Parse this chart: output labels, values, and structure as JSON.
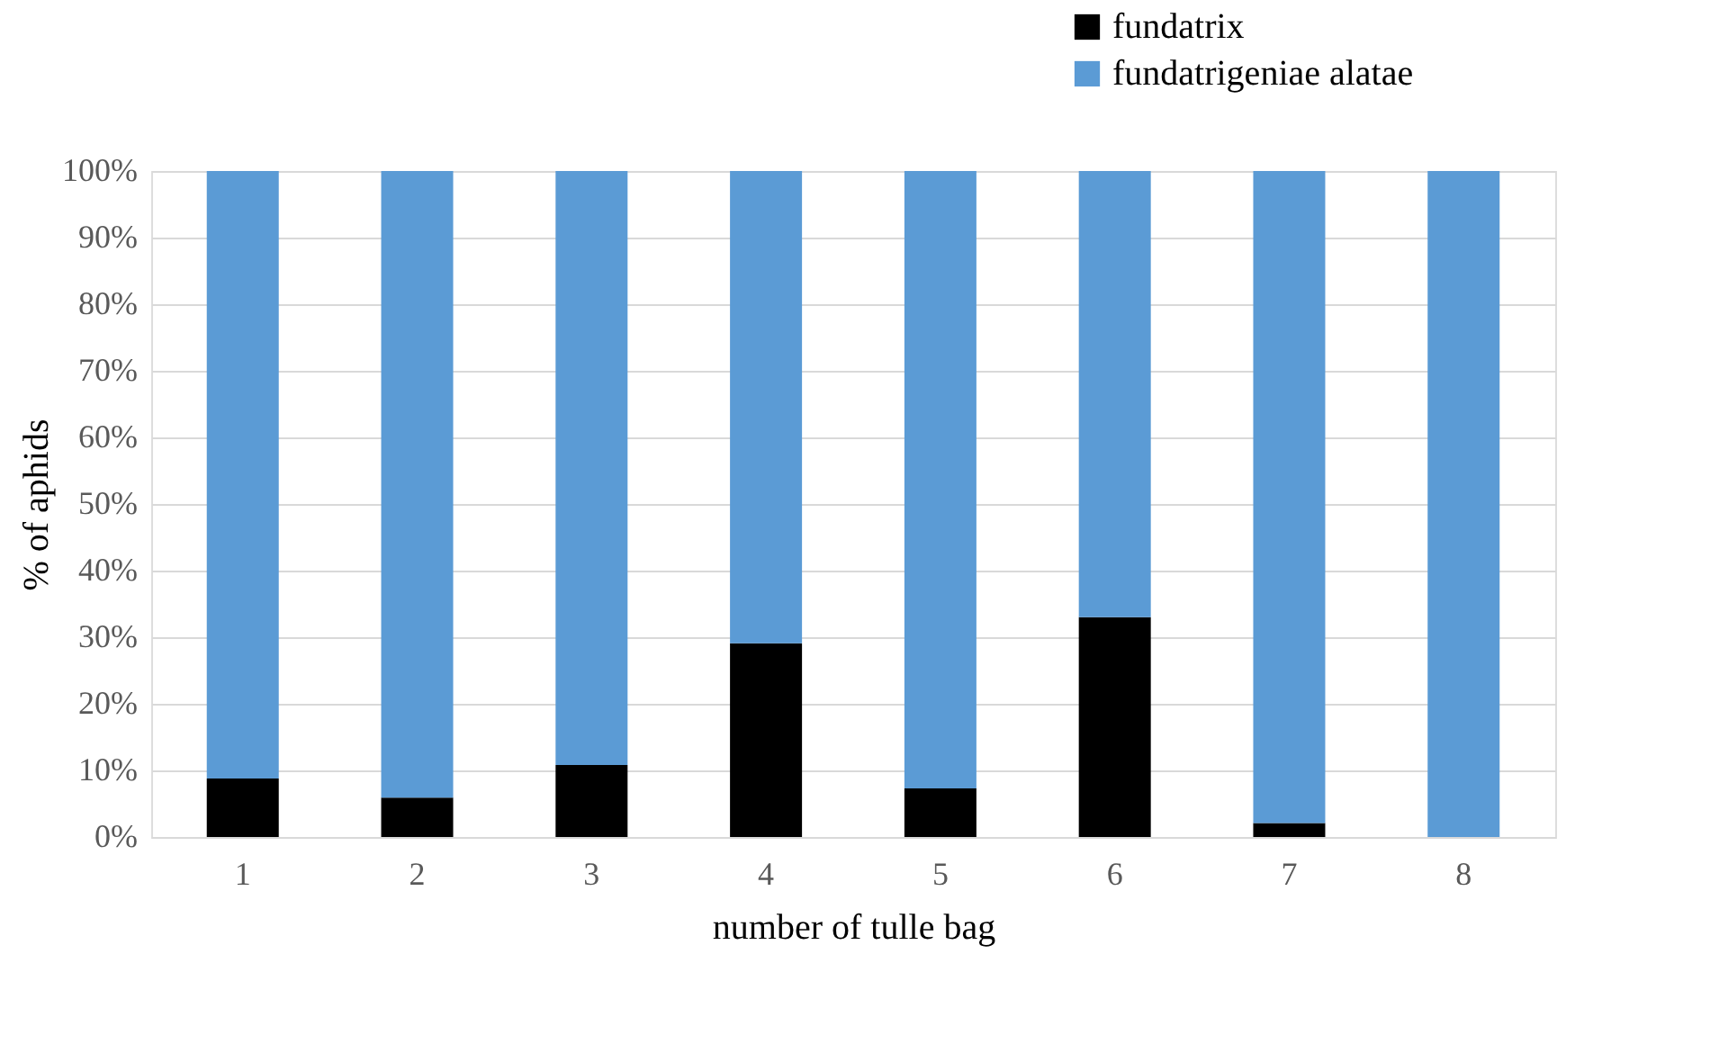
{
  "chart_data": {
    "type": "bar",
    "stacked": true,
    "xlabel": "number of tulle bag",
    "ylabel": "% of aphids",
    "categories": [
      "1",
      "2",
      "3",
      "4",
      "5",
      "6",
      "7",
      "8"
    ],
    "series": [
      {
        "name": "fundatrix",
        "color": "#000000",
        "values": [
          8.8,
          5.9,
          10.8,
          29.1,
          7.3,
          33.0,
          2.1,
          0
        ]
      },
      {
        "name": "fundatrigeniae alatae",
        "color": "#5b9bd5",
        "values": [
          91.2,
          94.1,
          89.2,
          70.9,
          92.7,
          67.0,
          97.9,
          100
        ]
      }
    ],
    "ylim": [
      0,
      100
    ],
    "yticks": [
      {
        "value": 0,
        "label": "0%"
      },
      {
        "value": 10,
        "label": "10%"
      },
      {
        "value": 20,
        "label": "20%"
      },
      {
        "value": 30,
        "label": "30%"
      },
      {
        "value": 40,
        "label": "40%"
      },
      {
        "value": 50,
        "label": "50%"
      },
      {
        "value": 60,
        "label": "60%"
      },
      {
        "value": 70,
        "label": "70%"
      },
      {
        "value": 80,
        "label": "80%"
      },
      {
        "value": 90,
        "label": "90%"
      },
      {
        "value": 100,
        "label": "100%"
      }
    ],
    "grid": "y",
    "legend": "top right"
  }
}
